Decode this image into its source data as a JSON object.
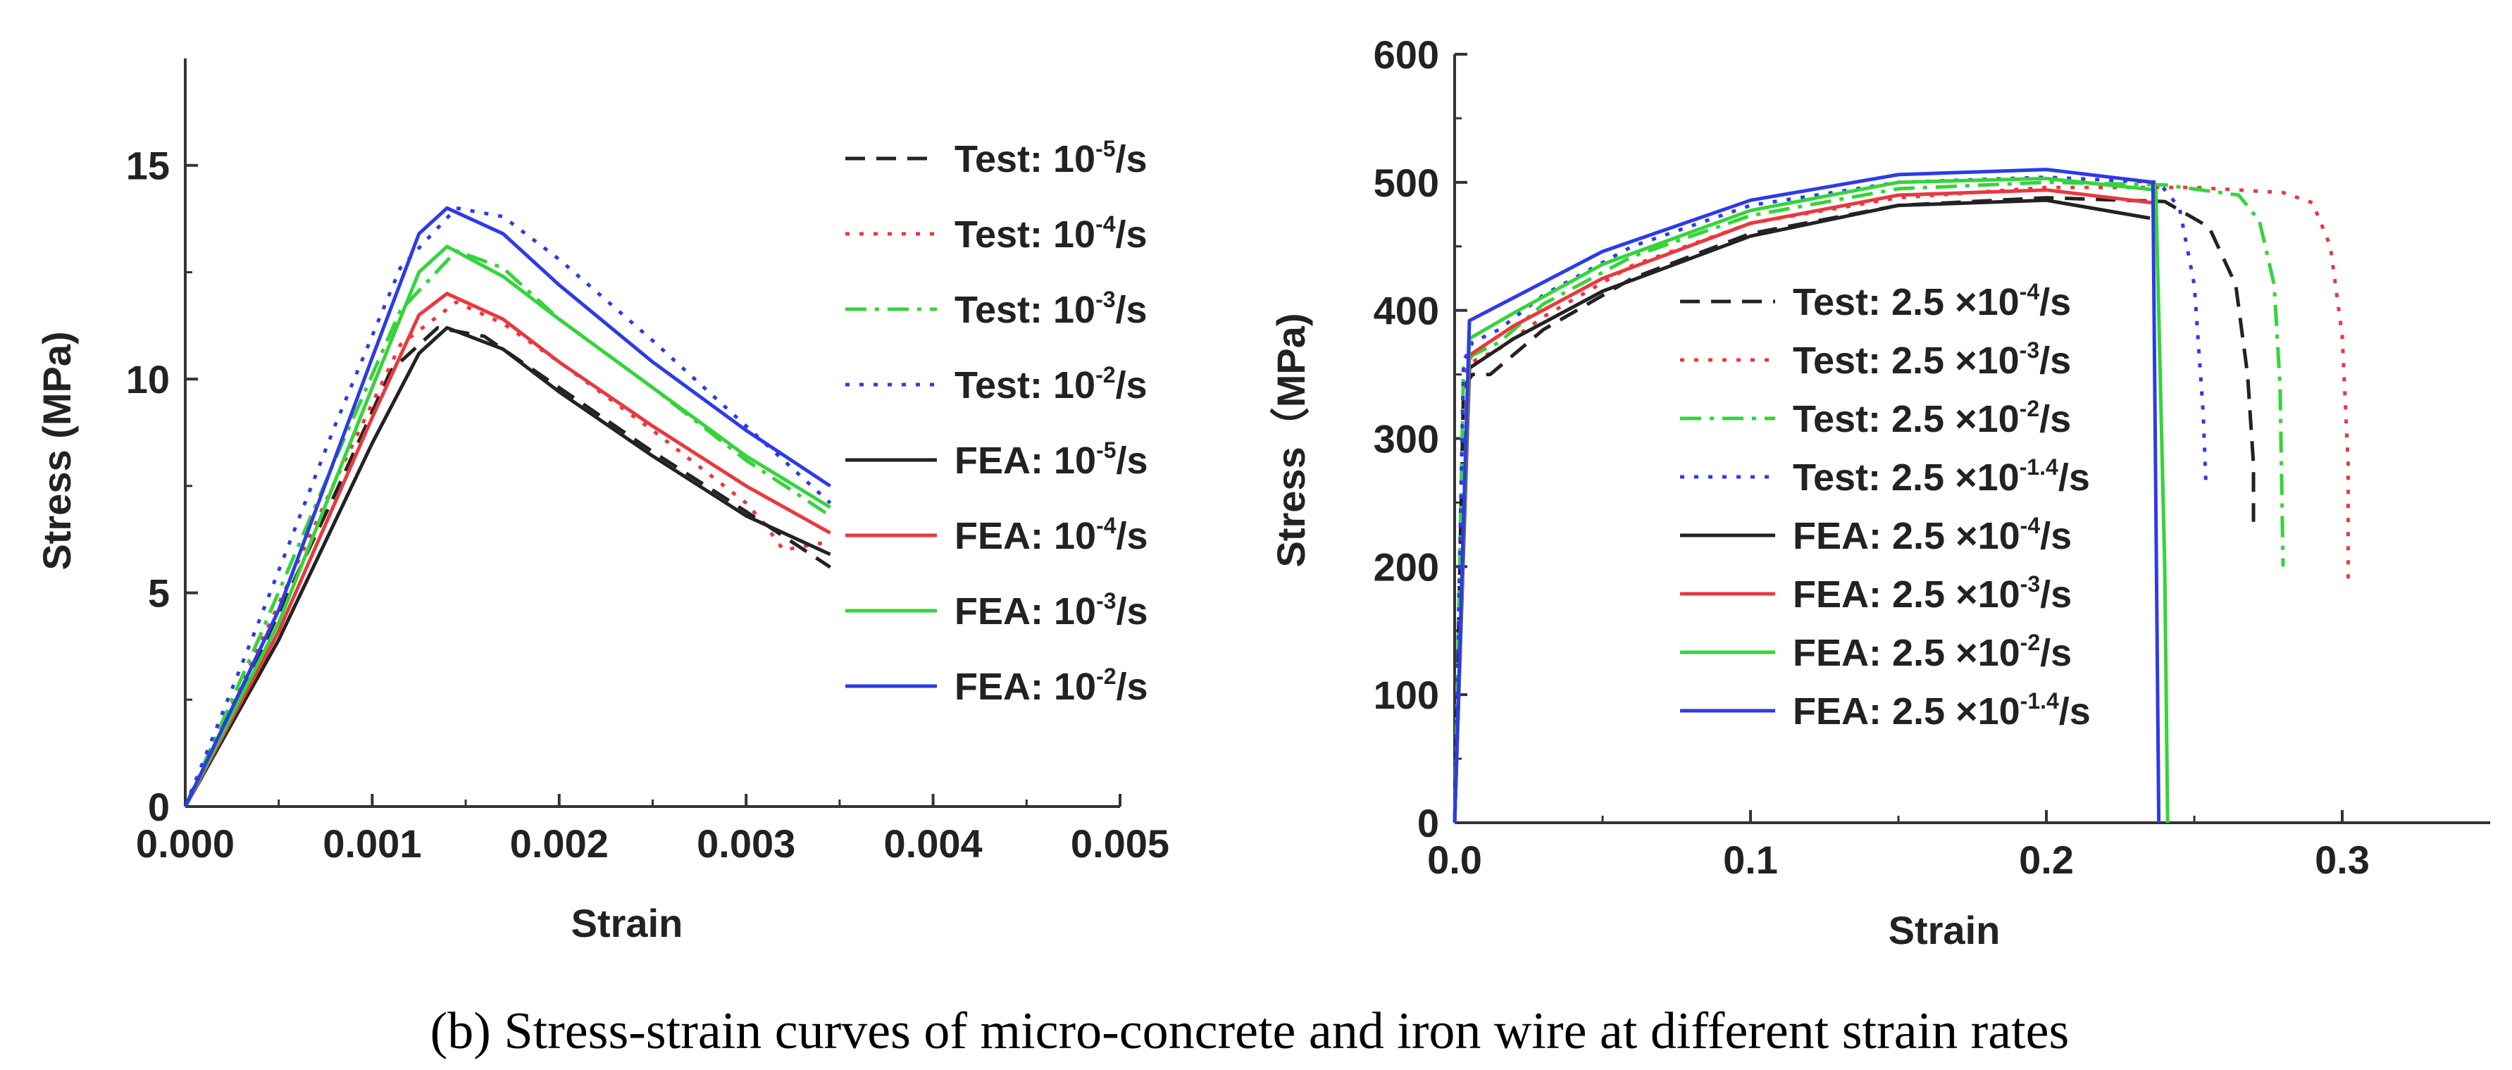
{
  "caption": "(b) Stress-strain curves of micro-concrete and iron wire at different strain rates",
  "colors": {
    "black": "#222222",
    "red": "#e8393f",
    "green": "#35d43a",
    "blue": "#2d3be6"
  },
  "chart_data": [
    {
      "type": "line",
      "xlabel": "Strain",
      "ylabel": "Stress (MPa)",
      "xlim": [
        0,
        0.005
      ],
      "ylim": [
        0,
        17.5
      ],
      "xticks": [
        0.0,
        0.001,
        0.002,
        0.003,
        0.004,
        0.005
      ],
      "xtick_labels": [
        "0.000",
        "0.001",
        "0.002",
        "0.003",
        "0.004",
        "0.005"
      ],
      "yticks": [
        0,
        5,
        10,
        15
      ],
      "ytick_labels": [
        "0",
        "5",
        "10",
        "15"
      ],
      "legend_position": "right",
      "series": [
        {
          "name": "Test: 10-5/s",
          "prefix": "Test: 10",
          "sup": "-5",
          "suffix": "/s",
          "color": "black",
          "dash": "dash",
          "x": [
            0,
            0.0004,
            0.0008,
            0.0011,
            0.00135,
            0.0016,
            0.002,
            0.0025,
            0.003,
            0.00345
          ],
          "y": [
            0,
            3.6,
            7.3,
            10.2,
            11.2,
            11.0,
            9.8,
            8.3,
            6.9,
            5.6
          ]
        },
        {
          "name": "Test: 10-4/s",
          "prefix": "Test: 10",
          "sup": "-4",
          "suffix": "/s",
          "color": "red",
          "dash": "dot",
          "x": [
            0,
            0.0004,
            0.0008,
            0.00115,
            0.00145,
            0.0017,
            0.002,
            0.0025,
            0.003,
            0.0031,
            0.0032,
            0.00345
          ],
          "y": [
            0,
            3.8,
            7.6,
            10.8,
            11.8,
            11.3,
            10.4,
            8.8,
            7.1,
            6.6,
            6.0,
            6.2
          ]
        },
        {
          "name": "Test: 10-3/s",
          "prefix": "Test: 10",
          "sup": "-3",
          "suffix": "/s",
          "color": "green",
          "dash": "dashdot",
          "x": [
            0,
            0.0004,
            0.0008,
            0.00115,
            0.00145,
            0.0017,
            0.002,
            0.0025,
            0.003,
            0.00345
          ],
          "y": [
            0,
            4.0,
            8.1,
            11.6,
            13.0,
            12.6,
            11.4,
            9.8,
            8.1,
            6.8
          ]
        },
        {
          "name": "Test: 10-2/s",
          "prefix": "Test: 10",
          "sup": "-2",
          "suffix": "/s",
          "color": "blue",
          "dash": "dot",
          "x": [
            0,
            0.0004,
            0.0008,
            0.00115,
            0.00145,
            0.0017,
            0.002,
            0.0025,
            0.003,
            0.00345
          ],
          "y": [
            0,
            4.4,
            8.9,
            12.6,
            14.0,
            13.8,
            12.8,
            10.9,
            8.9,
            7.1
          ]
        },
        {
          "name": "FEA: 10-5/s",
          "prefix": "FEA: 10",
          "sup": "-5",
          "suffix": "/s",
          "color": "black",
          "dash": "solid",
          "x": [
            0,
            0.0005,
            0.001,
            0.00125,
            0.0014,
            0.0017,
            0.002,
            0.0025,
            0.003,
            0.00345
          ],
          "y": [
            0,
            3.9,
            8.5,
            10.6,
            11.2,
            10.7,
            9.7,
            8.2,
            6.8,
            5.9
          ]
        },
        {
          "name": "FEA: 10-4/s",
          "prefix": "FEA: 10",
          "sup": "-4",
          "suffix": "/s",
          "color": "red",
          "dash": "solid",
          "x": [
            0,
            0.0005,
            0.001,
            0.00125,
            0.0014,
            0.0017,
            0.002,
            0.0025,
            0.003,
            0.00345
          ],
          "y": [
            0,
            4.1,
            9.1,
            11.5,
            12.0,
            11.4,
            10.4,
            8.9,
            7.5,
            6.4
          ]
        },
        {
          "name": "FEA: 10-3/s",
          "prefix": "FEA: 10",
          "sup": "-3",
          "suffix": "/s",
          "color": "green",
          "dash": "solid",
          "x": [
            0,
            0.0005,
            0.001,
            0.00125,
            0.0014,
            0.0017,
            0.002,
            0.0025,
            0.003,
            0.00345
          ],
          "y": [
            0,
            4.3,
            9.8,
            12.5,
            13.1,
            12.4,
            11.4,
            9.8,
            8.2,
            7.0
          ]
        },
        {
          "name": "FEA: 10-2/s",
          "prefix": "FEA: 10",
          "sup": "-2",
          "suffix": "/s",
          "color": "blue",
          "dash": "solid",
          "x": [
            0,
            0.0005,
            0.001,
            0.00125,
            0.0014,
            0.0017,
            0.002,
            0.0025,
            0.003,
            0.00345
          ],
          "y": [
            0,
            4.6,
            10.5,
            13.4,
            14.0,
            13.4,
            12.2,
            10.4,
            8.8,
            7.5
          ]
        }
      ]
    },
    {
      "type": "line",
      "xlabel": "Strain",
      "ylabel": "Stress（MPa)",
      "xlim": [
        0,
        0.35
      ],
      "ylim": [
        0,
        600
      ],
      "xticks": [
        0.0,
        0.1,
        0.2,
        0.3
      ],
      "xtick_labels": [
        "0.0",
        "0.1",
        "0.2",
        "0.3"
      ],
      "yticks": [
        0,
        100,
        200,
        300,
        400,
        500,
        600
      ],
      "ytick_labels": [
        "0",
        "100",
        "200",
        "300",
        "400",
        "500",
        "600"
      ],
      "legend_position": "center",
      "series": [
        {
          "name": "Test: 2.5 ×10-4/s",
          "prefix": "Test: 2.5 ×10",
          "sup": "-4",
          "suffix": "/s",
          "color": "black",
          "dash": "dash",
          "x": [
            0,
            0.003,
            0.006,
            0.012,
            0.03,
            0.06,
            0.1,
            0.15,
            0.2,
            0.24,
            0.255,
            0.264,
            0.268,
            0.27,
            0.27
          ],
          "y": [
            0,
            340,
            350,
            350,
            385,
            425,
            460,
            482,
            488,
            485,
            465,
            420,
            350,
            280,
            235
          ]
        },
        {
          "name": "Test: 2.5 ×10-3/s",
          "prefix": "Test: 2.5 ×10",
          "sup": "-3",
          "suffix": "/s",
          "color": "red",
          "dash": "dot",
          "x": [
            0,
            0.003,
            0.006,
            0.015,
            0.03,
            0.06,
            0.1,
            0.15,
            0.2,
            0.25,
            0.28,
            0.29,
            0.296,
            0.3,
            0.302,
            0.302
          ],
          "y": [
            0,
            350,
            360,
            370,
            395,
            435,
            468,
            488,
            496,
            496,
            492,
            484,
            450,
            380,
            280,
            190
          ]
        },
        {
          "name": "Test: 2.5 ×10-2/s",
          "prefix": "Test: 2.5 ×10",
          "sup": "-2",
          "suffix": "/s",
          "color": "green",
          "dash": "dashdot",
          "x": [
            0,
            0.003,
            0.006,
            0.015,
            0.03,
            0.06,
            0.1,
            0.15,
            0.2,
            0.24,
            0.265,
            0.272,
            0.277,
            0.279,
            0.28
          ],
          "y": [
            0,
            355,
            365,
            375,
            405,
            442,
            474,
            495,
            500,
            498,
            490,
            470,
            420,
            340,
            200
          ]
        },
        {
          "name": "Test: 2.5 ×10-1.4/s",
          "prefix": "Test: 2.5 ×10",
          "sup": "-1.4",
          "suffix": "/s",
          "color": "blue",
          "dash": "dot",
          "x": [
            0,
            0.003,
            0.006,
            0.015,
            0.03,
            0.06,
            0.1,
            0.15,
            0.2,
            0.238,
            0.245,
            0.25,
            0.253,
            0.254
          ],
          "y": [
            0,
            360,
            375,
            385,
            412,
            450,
            482,
            500,
            504,
            500,
            480,
            420,
            320,
            260
          ]
        },
        {
          "name": "FEA: 2.5 ×10-4/s",
          "prefix": "FEA: 2.5 ×10",
          "sup": "-4",
          "suffix": "/s",
          "color": "black",
          "dash": "solid",
          "x": [
            0,
            0.005,
            0.02,
            0.05,
            0.1,
            0.15,
            0.2,
            0.235
          ],
          "y": [
            0,
            355,
            378,
            415,
            458,
            482,
            486,
            472
          ]
        },
        {
          "name": "FEA: 2.5 ×10-3/s",
          "prefix": "FEA: 2.5 ×10",
          "sup": "-3",
          "suffix": "/s",
          "color": "red",
          "dash": "solid",
          "x": [
            0,
            0.005,
            0.02,
            0.05,
            0.1,
            0.15,
            0.2,
            0.236
          ],
          "y": [
            0,
            365,
            388,
            425,
            468,
            490,
            494,
            484
          ]
        },
        {
          "name": "FEA: 2.5 ×10-2/s",
          "prefix": "FEA: 2.5 ×10",
          "sup": "-2",
          "suffix": "/s",
          "color": "green",
          "dash": "solid",
          "x": [
            0,
            0.005,
            0.02,
            0.05,
            0.1,
            0.15,
            0.2,
            0.237,
            0.24,
            0.241
          ],
          "y": [
            0,
            378,
            398,
            436,
            478,
            500,
            503,
            494,
            200,
            0
          ]
        },
        {
          "name": "FEA: 2.5 ×10-1.4/s",
          "prefix": "FEA: 2.5 ×10",
          "sup": "-1.4",
          "suffix": "/s",
          "color": "blue",
          "dash": "solid",
          "x": [
            0,
            0.005,
            0.02,
            0.05,
            0.1,
            0.15,
            0.2,
            0.236,
            0.237,
            0.238
          ],
          "y": [
            0,
            392,
            410,
            446,
            486,
            506,
            510,
            500,
            250,
            0
          ]
        }
      ]
    }
  ]
}
